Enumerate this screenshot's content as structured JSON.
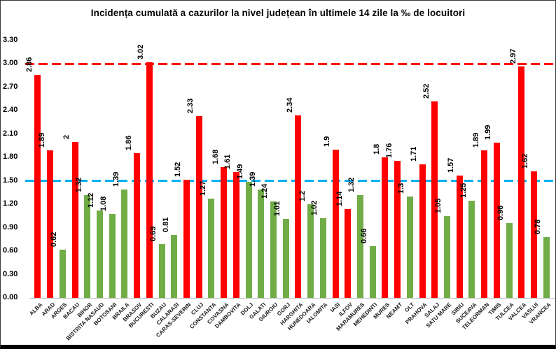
{
  "title": "Incidența cumulată a cazurilor la nivel județean în ultimele 14 zile la ‰ de locuitori",
  "chart_data": {
    "type": "bar",
    "title": "Incidența cumulată a cazurilor la nivel județean în ultimele 14 zile la ‰ de locuitori",
    "categories": [
      "ALBA",
      "ARAD",
      "ARGES",
      "BACAU",
      "BIHOR",
      "BISTRITA NASAUD",
      "BOTOSANI",
      "BRAILA",
      "BRASOV",
      "BUCURESTI",
      "BUZAU",
      "CALARASI",
      "CARAS-SEVERIN",
      "CLUJ",
      "CONSTANTA",
      "COVASNA",
      "DAMBOVITA",
      "DOLJ",
      "GALATI",
      "GIURGIU",
      "GORJ",
      "HARGHITA",
      "HUNEDOARA",
      "IALOMITA",
      "IASI",
      "ILFOV",
      "MARAMURES",
      "MEHEDINTI",
      "MURES",
      "NEAMT",
      "OLT",
      "PRAHOVA",
      "SALAJ",
      "SATU MARE",
      "SIBIU",
      "SUCEAVA",
      "TELEORMAN",
      "TIMIS",
      "TULCEA",
      "VALCEA",
      "VASLUI",
      "VRANCEA"
    ],
    "values": [
      2.86,
      1.89,
      0.62,
      2,
      1.32,
      1.12,
      1.08,
      1.39,
      1.86,
      3.02,
      0.69,
      0.81,
      1.52,
      2.33,
      1.27,
      1.68,
      1.61,
      1.49,
      1.39,
      1.24,
      1.01,
      2.34,
      1.2,
      1.02,
      1.9,
      1.14,
      1.32,
      0.66,
      1.8,
      1.76,
      1.3,
      1.71,
      2.52,
      1.05,
      1.57,
      1.25,
      1.89,
      1.99,
      0.96,
      2.97,
      1.62,
      0.78
    ],
    "display_labels": [
      "2.86",
      "1.89",
      "0.62",
      "2",
      "1.32",
      "1.12",
      "1.08",
      "1.39",
      "1.86",
      "3.02",
      "0.69",
      "0.81",
      "1.52",
      "2.33",
      "1.27",
      "1.68",
      "1.61",
      "1.49",
      "1.39",
      "1.24",
      "1.01",
      "2.34",
      "1.2",
      "1.02",
      "1.9",
      "1.14",
      "1.32",
      "0.66",
      "1.8",
      "1.76",
      "1.3",
      "1.71",
      "2.52",
      "1.05",
      "1.57",
      "1.25",
      "1.89",
      "1.99",
      "0.96",
      "2.97",
      "1.62",
      "0.78"
    ],
    "bar_colors": [
      "#FF0000",
      "#FF0000",
      "#70AD47",
      "#FF0000",
      "#70AD47",
      "#70AD47",
      "#70AD47",
      "#70AD47",
      "#FF0000",
      "#FF0000",
      "#70AD47",
      "#70AD47",
      "#FF0000",
      "#FF0000",
      "#70AD47",
      "#FF0000",
      "#FF0000",
      "#70AD47",
      "#70AD47",
      "#70AD47",
      "#70AD47",
      "#FF0000",
      "#70AD47",
      "#70AD47",
      "#FF0000",
      "#FF0000",
      "#70AD47",
      "#70AD47",
      "#FF0000",
      "#FF0000",
      "#70AD47",
      "#FF0000",
      "#FF0000",
      "#70AD47",
      "#FF0000",
      "#70AD47",
      "#FF0000",
      "#FF0000",
      "#70AD47",
      "#FF0000",
      "#FF0000",
      "#70AD47"
    ],
    "colors": {
      "red_bar": "#FF0000",
      "green_bar": "#70AD47"
    },
    "y_ticks": [
      "3.30",
      "3.00",
      "2.70",
      "2.40",
      "2.10",
      "1.80",
      "1.50",
      "1.20",
      "0.90",
      "0.60",
      "0.30",
      "0.00"
    ],
    "ylim": [
      0,
      3.3
    ],
    "grid": false,
    "legend": false,
    "xlabel": "",
    "ylabel": "",
    "reference_lines": [
      {
        "name": "red-threshold",
        "value": 3.0,
        "color": "#FF0000",
        "style": "dashed"
      },
      {
        "name": "blue-threshold",
        "value": 1.5,
        "color": "#00B0F0",
        "style": "dashed"
      }
    ]
  }
}
